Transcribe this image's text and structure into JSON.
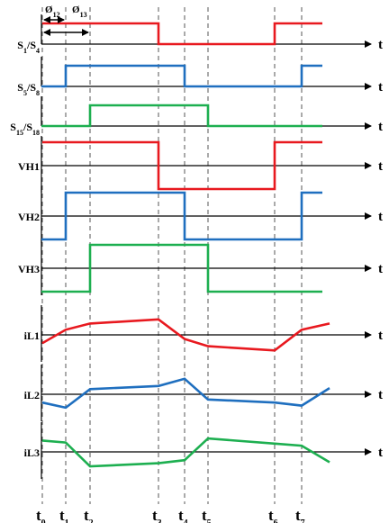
{
  "figure": {
    "time_axis_symbol": "t",
    "phase_shift_labels": [
      {
        "base": "Ø",
        "sub": "12"
      },
      {
        "base": "Ø",
        "sub": "13"
      }
    ],
    "time_markers": [
      {
        "base": "t",
        "sub": "0"
      },
      {
        "base": "t",
        "sub": "1"
      },
      {
        "base": "t",
        "sub": "2"
      },
      {
        "base": "t",
        "sub": "3"
      },
      {
        "base": "t",
        "sub": "4"
      },
      {
        "base": "t",
        "sub": "5"
      },
      {
        "base": "t",
        "sub": "6"
      },
      {
        "base": "t",
        "sub": "7"
      }
    ],
    "rows": [
      {
        "id": "s1s4",
        "parts": [
          {
            "t": "S"
          },
          {
            "t": "1",
            "sub": true
          },
          {
            "t": "/S"
          },
          {
            "t": "4",
            "sub": true
          }
        ],
        "color": "#e8191f",
        "kind": "square",
        "high_from_tick": 0,
        "low_from_tick": 3,
        "high_again_tick": 6
      },
      {
        "id": "s5s8",
        "parts": [
          {
            "t": "S"
          },
          {
            "t": "5",
            "sub": true
          },
          {
            "t": "/S"
          },
          {
            "t": "8",
            "sub": true
          }
        ],
        "color": "#1f6fbf",
        "kind": "square",
        "high_from_tick": 1,
        "low_from_tick": 4,
        "high_again_tick": 7
      },
      {
        "id": "s15s18",
        "parts": [
          {
            "t": "S"
          },
          {
            "t": "15",
            "sub": true
          },
          {
            "t": "/S"
          },
          {
            "t": "18",
            "sub": true
          }
        ],
        "color": "#1daf50",
        "kind": "square",
        "high_from_tick": 2,
        "low_from_tick": 5,
        "high_again_tick": null
      },
      {
        "id": "vh1",
        "parts": [
          {
            "t": "VH1"
          }
        ],
        "color": "#e8191f",
        "kind": "bipolar",
        "high_from_tick": 0,
        "low_from_tick": 3,
        "high_again_tick": 6
      },
      {
        "id": "vh2",
        "parts": [
          {
            "t": "VH2"
          }
        ],
        "color": "#1f6fbf",
        "kind": "bipolar",
        "high_from_tick": 1,
        "low_from_tick": 4,
        "high_again_tick": 7
      },
      {
        "id": "vh3",
        "parts": [
          {
            "t": "VH3"
          }
        ],
        "color": "#1daf50",
        "kind": "bipolar",
        "high_from_tick": 2,
        "low_from_tick": 5,
        "high_again_tick": null
      },
      {
        "id": "il1",
        "parts": [
          {
            "t": "iL1"
          }
        ],
        "color": "#e8191f",
        "kind": "current",
        "levels": [
          -0.4,
          0.25,
          0.55,
          0.75,
          -0.2,
          -0.55,
          -0.75,
          0.25,
          0.55
        ]
      },
      {
        "id": "il2",
        "parts": [
          {
            "t": "iL2"
          }
        ],
        "color": "#1f6fbf",
        "kind": "current",
        "levels": [
          -0.4,
          -0.65,
          0.25,
          0.4,
          0.75,
          -0.25,
          -0.4,
          -0.55,
          0.3
        ]
      },
      {
        "id": "il3",
        "parts": [
          {
            "t": "iL3"
          }
        ],
        "color": "#1daf50",
        "kind": "current",
        "levels": [
          0.55,
          0.45,
          -0.7,
          -0.55,
          -0.4,
          0.65,
          0.4,
          0.3,
          -0.5
        ]
      }
    ]
  }
}
